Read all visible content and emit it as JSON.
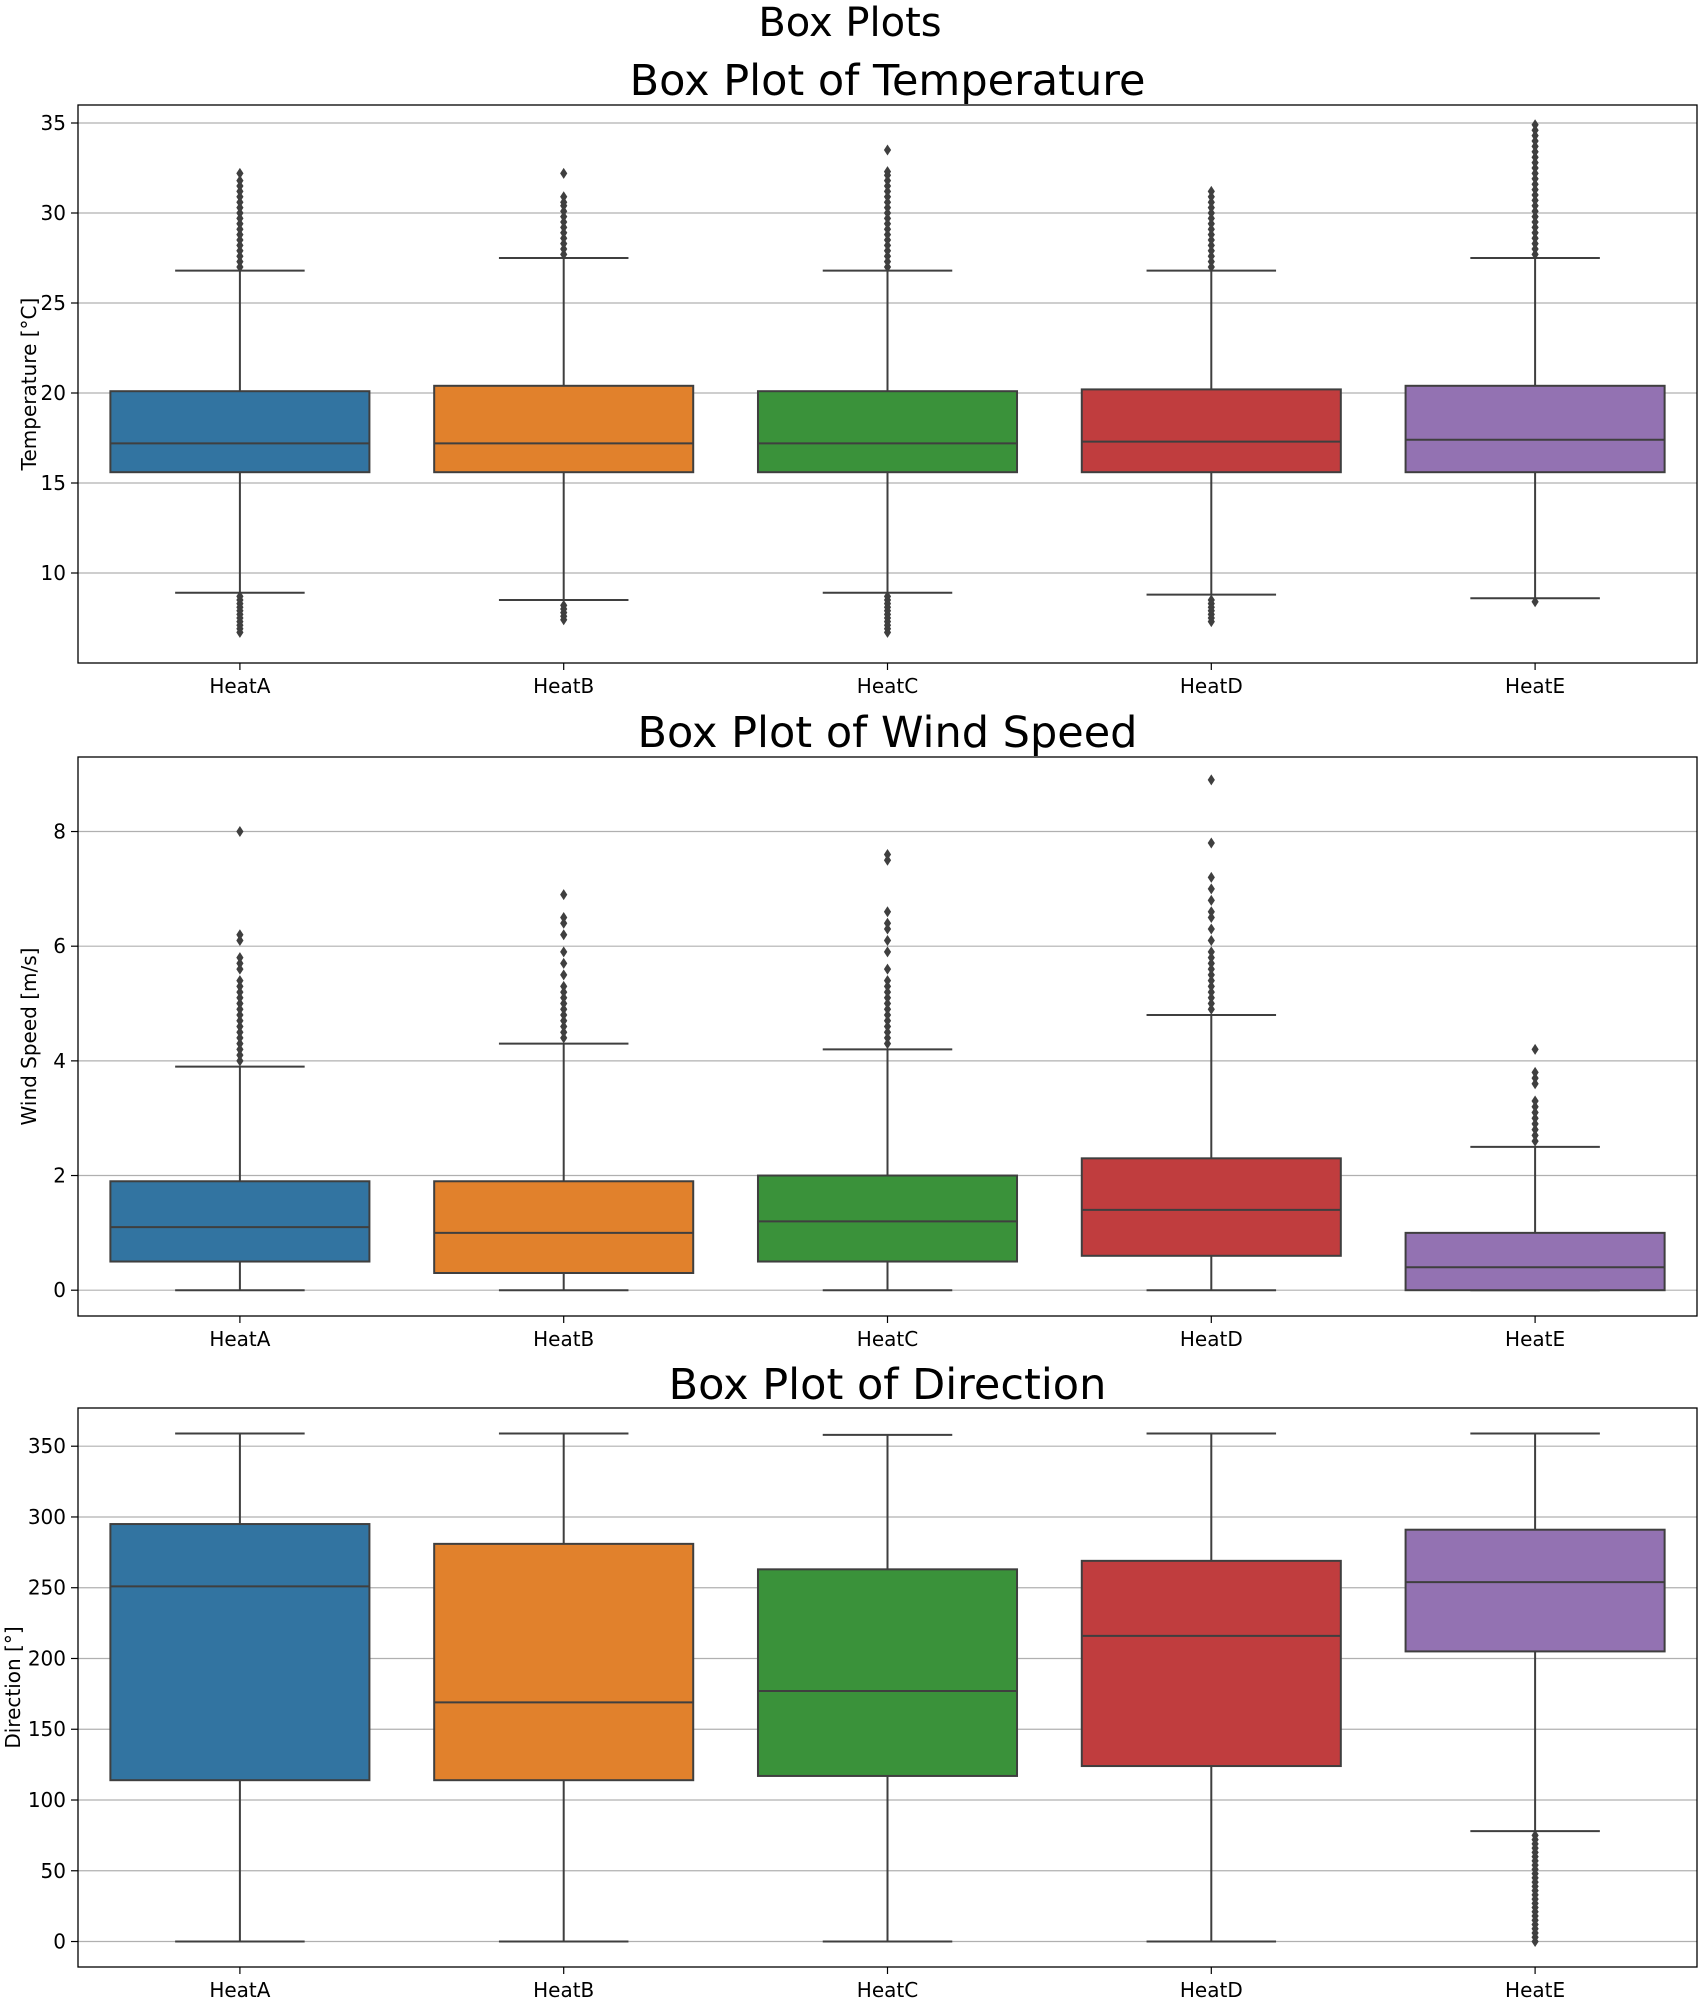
{
  "figure": {
    "title": "Box Plots"
  },
  "chart_data": [
    {
      "type": "box",
      "title": "Box Plot of Temperature",
      "xlabel": "",
      "ylabel": "Temperature [°C]",
      "ylim": [
        5,
        36
      ],
      "yticks": [
        10,
        15,
        20,
        25,
        30,
        35
      ],
      "grid": "y",
      "categories": [
        "HeatA",
        "HeatB",
        "HeatC",
        "HeatD",
        "HeatE"
      ],
      "colors": [
        "#3274a1",
        "#e1812c",
        "#3a923a",
        "#c03d3e",
        "#9372b2"
      ],
      "boxes": [
        {
          "whislo": 8.9,
          "q1": 15.6,
          "med": 17.2,
          "q3": 20.1,
          "whishi": 26.8,
          "fliers": [
            6.7,
            6.9,
            7.1,
            7.3,
            7.5,
            7.7,
            7.9,
            8.1,
            8.3,
            8.5,
            8.7,
            27.0,
            27.3,
            27.6,
            27.9,
            28.2,
            28.5,
            28.8,
            29.1,
            29.4,
            29.7,
            30.0,
            30.3,
            30.6,
            30.9,
            31.2,
            31.5,
            31.8,
            32.2
          ]
        },
        {
          "whislo": 8.5,
          "q1": 15.6,
          "med": 17.2,
          "q3": 20.4,
          "whishi": 27.5,
          "fliers": [
            7.4,
            7.6,
            7.8,
            8.0,
            8.2,
            27.7,
            28.0,
            28.3,
            28.6,
            28.9,
            29.2,
            29.5,
            29.8,
            30.1,
            30.4,
            30.6,
            30.9,
            32.2
          ]
        },
        {
          "whislo": 8.9,
          "q1": 15.6,
          "med": 17.2,
          "q3": 20.1,
          "whishi": 26.8,
          "fliers": [
            6.7,
            6.9,
            7.1,
            7.3,
            7.5,
            7.7,
            7.9,
            8.1,
            8.3,
            8.5,
            8.7,
            27.0,
            27.3,
            27.6,
            27.9,
            28.2,
            28.5,
            28.8,
            29.1,
            29.4,
            29.7,
            30.0,
            30.3,
            30.6,
            30.9,
            31.2,
            31.5,
            31.8,
            32.1,
            32.3,
            33.5
          ]
        },
        {
          "whislo": 8.8,
          "q1": 15.6,
          "med": 17.3,
          "q3": 20.2,
          "whishi": 26.8,
          "fliers": [
            7.3,
            7.5,
            7.7,
            7.9,
            8.1,
            8.3,
            8.5,
            27.0,
            27.3,
            27.6,
            27.9,
            28.2,
            28.5,
            28.8,
            29.1,
            29.4,
            29.7,
            30.0,
            30.3,
            30.6,
            30.9,
            31.2
          ]
        },
        {
          "whislo": 8.6,
          "q1": 15.6,
          "med": 17.4,
          "q3": 20.4,
          "whishi": 27.5,
          "fliers": [
            8.4,
            27.7,
            28.0,
            28.3,
            28.6,
            28.9,
            29.2,
            29.5,
            29.8,
            30.1,
            30.4,
            30.7,
            31.0,
            31.3,
            31.6,
            31.9,
            32.2,
            32.5,
            32.8,
            33.1,
            33.4,
            33.7,
            34.0,
            34.3,
            34.6,
            34.9
          ]
        }
      ]
    },
    {
      "type": "box",
      "title": "Box Plot of Wind Speed",
      "xlabel": "",
      "ylabel": "Wind Speed [m/s]",
      "ylim": [
        -0.45,
        9.3
      ],
      "yticks": [
        0,
        2,
        4,
        6,
        8
      ],
      "grid": "y",
      "categories": [
        "HeatA",
        "HeatB",
        "HeatC",
        "HeatD",
        "HeatE"
      ],
      "colors": [
        "#3274a1",
        "#e1812c",
        "#3a923a",
        "#c03d3e",
        "#9372b2"
      ],
      "boxes": [
        {
          "whislo": 0,
          "q1": 0.5,
          "med": 1.1,
          "q3": 1.9,
          "whishi": 3.9,
          "fliers": [
            4.0,
            4.1,
            4.2,
            4.3,
            4.4,
            4.5,
            4.6,
            4.7,
            4.8,
            4.9,
            5.0,
            5.1,
            5.2,
            5.3,
            5.4,
            5.6,
            5.7,
            5.8,
            6.1,
            6.2,
            8.0
          ]
        },
        {
          "whislo": 0,
          "q1": 0.3,
          "med": 1.0,
          "q3": 1.9,
          "whishi": 4.3,
          "fliers": [
            4.4,
            4.5,
            4.6,
            4.7,
            4.8,
            4.9,
            5.0,
            5.1,
            5.2,
            5.3,
            5.5,
            5.7,
            5.9,
            6.2,
            6.4,
            6.5,
            6.9
          ]
        },
        {
          "whislo": 0,
          "q1": 0.5,
          "med": 1.2,
          "q3": 2.0,
          "whishi": 4.2,
          "fliers": [
            4.3,
            4.4,
            4.5,
            4.6,
            4.7,
            4.8,
            4.9,
            5.0,
            5.1,
            5.2,
            5.3,
            5.4,
            5.6,
            5.9,
            6.1,
            6.3,
            6.4,
            6.6,
            7.5,
            7.6
          ]
        },
        {
          "whislo": 0,
          "q1": 0.6,
          "med": 1.4,
          "q3": 2.3,
          "whishi": 4.8,
          "fliers": [
            4.9,
            5.0,
            5.1,
            5.2,
            5.3,
            5.4,
            5.5,
            5.6,
            5.7,
            5.8,
            5.9,
            6.1,
            6.3,
            6.5,
            6.6,
            6.8,
            7.0,
            7.2,
            7.8,
            8.9
          ]
        },
        {
          "whislo": 0,
          "q1": 0.0,
          "med": 0.4,
          "q3": 1.0,
          "whishi": 2.5,
          "fliers": [
            2.6,
            2.7,
            2.8,
            2.9,
            3.0,
            3.1,
            3.2,
            3.3,
            3.6,
            3.7,
            3.8,
            4.2
          ]
        }
      ]
    },
    {
      "type": "box",
      "title": "Box Plot of Direction",
      "xlabel": "",
      "ylabel": "Direction [°]",
      "ylim": [
        -18,
        377
      ],
      "yticks": [
        0,
        50,
        100,
        150,
        200,
        250,
        300,
        350
      ],
      "grid": "y",
      "categories": [
        "HeatA",
        "HeatB",
        "HeatC",
        "HeatD",
        "HeatE"
      ],
      "colors": [
        "#3274a1",
        "#e1812c",
        "#3a923a",
        "#c03d3e",
        "#9372b2"
      ],
      "boxes": [
        {
          "whislo": 0,
          "q1": 114,
          "med": 251,
          "q3": 295,
          "whishi": 359,
          "fliers": []
        },
        {
          "whislo": 0,
          "q1": 114,
          "med": 169,
          "q3": 281,
          "whishi": 359,
          "fliers": []
        },
        {
          "whislo": 0,
          "q1": 117,
          "med": 177,
          "q3": 263,
          "whishi": 358,
          "fliers": []
        },
        {
          "whislo": 0,
          "q1": 124,
          "med": 216,
          "q3": 269,
          "whishi": 359,
          "fliers": []
        },
        {
          "whislo": 78,
          "q1": 205,
          "med": 254,
          "q3": 291,
          "whishi": 359,
          "fliers": [
            0,
            3,
            6,
            9,
            12,
            15,
            18,
            21,
            24,
            27,
            30,
            33,
            36,
            39,
            42,
            45,
            48,
            51,
            54,
            57,
            60,
            63,
            66,
            69,
            72,
            75
          ]
        }
      ]
    }
  ]
}
